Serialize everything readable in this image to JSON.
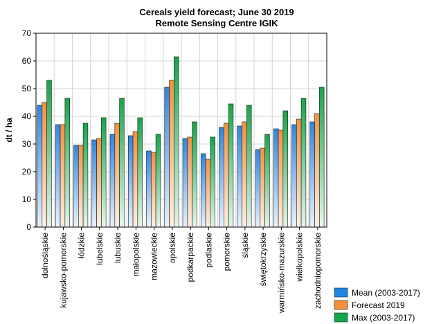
{
  "chart_data": {
    "type": "bar",
    "title": "Cereals yield forecast; June 30 2019",
    "subtitle": "Remote Sensing Centre IGIK",
    "xlabel": "",
    "ylabel": "dt / ha",
    "ylim": [
      0,
      70
    ],
    "yticks": [
      0,
      10,
      20,
      30,
      40,
      50,
      60,
      70
    ],
    "grid": true,
    "legend_position": "bottom-right",
    "categories": [
      "dolnośląskie",
      "kujawsko-pomorskie",
      "łódzkie",
      "lubelskie",
      "lubuskie",
      "małopolskie",
      "mazowieckie",
      "opolskie",
      "podkarpackie",
      "podlaskie",
      "pomorskie",
      "śląskie",
      "świętokrzyskie",
      "warmińsko-mazurskie",
      "wielkopolskie",
      "zachodniopomorskie"
    ],
    "series": [
      {
        "name": "Mean (2003-2017)",
        "color": "#3a8ee6",
        "values": [
          44.0,
          37.0,
          29.5,
          31.5,
          33.5,
          33.0,
          27.5,
          50.5,
          32.0,
          26.5,
          36.0,
          36.5,
          28.0,
          35.5,
          37.0,
          38.0
        ]
      },
      {
        "name": "Forecast 2019",
        "color": "#f59a4a",
        "values": [
          45.0,
          37.0,
          29.5,
          32.0,
          37.5,
          34.5,
          27.0,
          53.0,
          32.5,
          24.5,
          37.5,
          38.0,
          28.5,
          35.0,
          39.0,
          41.0
        ]
      },
      {
        "name": "Max (2003-2017)",
        "color": "#1fa84f",
        "values": [
          53.0,
          46.5,
          37.5,
          39.5,
          46.5,
          39.5,
          33.5,
          61.5,
          38.0,
          32.5,
          44.5,
          44.0,
          33.5,
          42.0,
          46.5,
          50.5
        ]
      }
    ]
  }
}
